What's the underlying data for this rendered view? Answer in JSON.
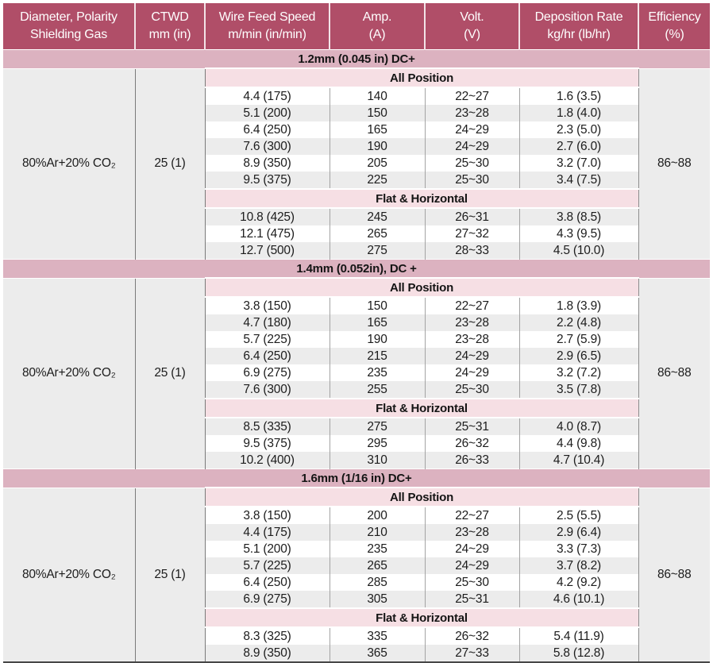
{
  "colors": {
    "header_bg": "#b04e68",
    "section_band_bg": "#dcb2c0",
    "position_band_bg": "#f6dfe4",
    "row_shade_bg": "#ececec",
    "side_column_bg": "#ececec",
    "header_text": "#ffffff",
    "body_text": "#1c1c1c"
  },
  "table": {
    "columns": [
      {
        "key": "diameter",
        "line1": "Diameter, Polarity",
        "line2": "Shielding Gas"
      },
      {
        "key": "ctwd",
        "line1": "CTWD",
        "line2": "mm (in)"
      },
      {
        "key": "wire-feed-speed",
        "line1": "Wire Feed Speed",
        "line2": "m/min (in/min)"
      },
      {
        "key": "amp",
        "line1": "Amp.",
        "line2": "(A)"
      },
      {
        "key": "volt",
        "line1": "Volt.",
        "line2": "(V)"
      },
      {
        "key": "deposition-rate",
        "line1": "Deposition Rate",
        "line2": "kg/hr (lb/hr)"
      },
      {
        "key": "efficiency",
        "line1": "Efficiency",
        "line2": "(%)"
      }
    ],
    "sections": [
      {
        "title": "1.2mm (0.045 in) DC+",
        "shielding_gas": "80%Ar+20% CO₂",
        "ctwd": "25 (1)",
        "efficiency": "86~88",
        "groups": [
          {
            "position": "All Position",
            "rows": [
              {
                "wfs": "4.4 (175)",
                "amp": "140",
                "volt": "22~27",
                "dep": "1.6 (3.5)",
                "shaded": false
              },
              {
                "wfs": "5.1 (200)",
                "amp": "150",
                "volt": "23~28",
                "dep": "1.8 (4.0)",
                "shaded": true
              },
              {
                "wfs": "6.4 (250)",
                "amp": "165",
                "volt": "24~29",
                "dep": "2.3 (5.0)",
                "shaded": false
              },
              {
                "wfs": "7.6 (300)",
                "amp": "190",
                "volt": "24~29",
                "dep": "2.7 (6.0)",
                "shaded": true
              },
              {
                "wfs": "8.9 (350)",
                "amp": "205",
                "volt": "25~30",
                "dep": "3.2 (7.0)",
                "shaded": false
              },
              {
                "wfs": "9.5 (375)",
                "amp": "225",
                "volt": "25~30",
                "dep": "3.4 (7.5)",
                "shaded": true
              }
            ]
          },
          {
            "position": "Flat & Horizontal",
            "rows": [
              {
                "wfs": "10.8 (425)",
                "amp": "245",
                "volt": "26~31",
                "dep": "3.8 (8.5)",
                "shaded": true
              },
              {
                "wfs": "12.1 (475)",
                "amp": "265",
                "volt": "27~32",
                "dep": "4.3 (9.5)",
                "shaded": false
              },
              {
                "wfs": "12.7 (500)",
                "amp": "275",
                "volt": "28~33",
                "dep": "4.5 (10.0)",
                "shaded": true
              }
            ]
          }
        ]
      },
      {
        "title": "1.4mm (0.052in), DC +",
        "shielding_gas": "80%Ar+20% CO₂",
        "ctwd": "25 (1)",
        "efficiency": "86~88",
        "groups": [
          {
            "position": "All Position",
            "rows": [
              {
                "wfs": "3.8 (150)",
                "amp": "150",
                "volt": "22~27",
                "dep": "1.8 (3.9)",
                "shaded": false
              },
              {
                "wfs": "4.7 (180)",
                "amp": "165",
                "volt": "23~28",
                "dep": "2.2 (4.8)",
                "shaded": true
              },
              {
                "wfs": "5.7 (225)",
                "amp": "190",
                "volt": "23~28",
                "dep": "2.7 (5.9)",
                "shaded": false
              },
              {
                "wfs": "6.4 (250)",
                "amp": "215",
                "volt": "24~29",
                "dep": "2.9 (6.5)",
                "shaded": true
              },
              {
                "wfs": "6.9 (275)",
                "amp": "235",
                "volt": "24~29",
                "dep": "3.2 (7.2)",
                "shaded": false
              },
              {
                "wfs": "7.6 (300)",
                "amp": "255",
                "volt": "25~30",
                "dep": "3.5 (7.8)",
                "shaded": true
              }
            ]
          },
          {
            "position": "Flat & Horizontal",
            "rows": [
              {
                "wfs": "8.5 (335)",
                "amp": "275",
                "volt": "25~31",
                "dep": "4.0 (8.7)",
                "shaded": true
              },
              {
                "wfs": "9.5 (375)",
                "amp": "295",
                "volt": "26~32",
                "dep": "4.4 (9.8)",
                "shaded": false
              },
              {
                "wfs": "10.2 (400)",
                "amp": "310",
                "volt": "26~33",
                "dep": "4.7 (10.4)",
                "shaded": true
              }
            ]
          }
        ]
      },
      {
        "title": "1.6mm (1/16 in) DC+",
        "shielding_gas": "80%Ar+20% CO₂",
        "ctwd": "25 (1)",
        "efficiency": "86~88",
        "groups": [
          {
            "position": "All Position",
            "rows": [
              {
                "wfs": "3.8 (150)",
                "amp": "200",
                "volt": "22~27",
                "dep": "2.5 (5.5)",
                "shaded": false
              },
              {
                "wfs": "4.4 (175)",
                "amp": "210",
                "volt": "23~28",
                "dep": "2.9 (6.4)",
                "shaded": true
              },
              {
                "wfs": "5.1 (200)",
                "amp": "235",
                "volt": "24~29",
                "dep": "3.3 (7.3)",
                "shaded": false
              },
              {
                "wfs": "5.7 (225)",
                "amp": "265",
                "volt": "24~29",
                "dep": "3.7 (8.2)",
                "shaded": true
              },
              {
                "wfs": "6.4 (250)",
                "amp": "285",
                "volt": "25~30",
                "dep": "4.2 (9.2)",
                "shaded": false
              },
              {
                "wfs": "6.9 (275)",
                "amp": "305",
                "volt": "25~31",
                "dep": "4.6 (10.1)",
                "shaded": true
              }
            ]
          },
          {
            "position": "Flat & Horizontal",
            "rows": [
              {
                "wfs": "8.3 (325)",
                "amp": "335",
                "volt": "26~32",
                "dep": "5.4 (11.9)",
                "shaded": false
              },
              {
                "wfs": "8.9 (350)",
                "amp": "365",
                "volt": "27~33",
                "dep": "5.8 (12.8)",
                "shaded": true
              }
            ]
          }
        ]
      }
    ]
  }
}
